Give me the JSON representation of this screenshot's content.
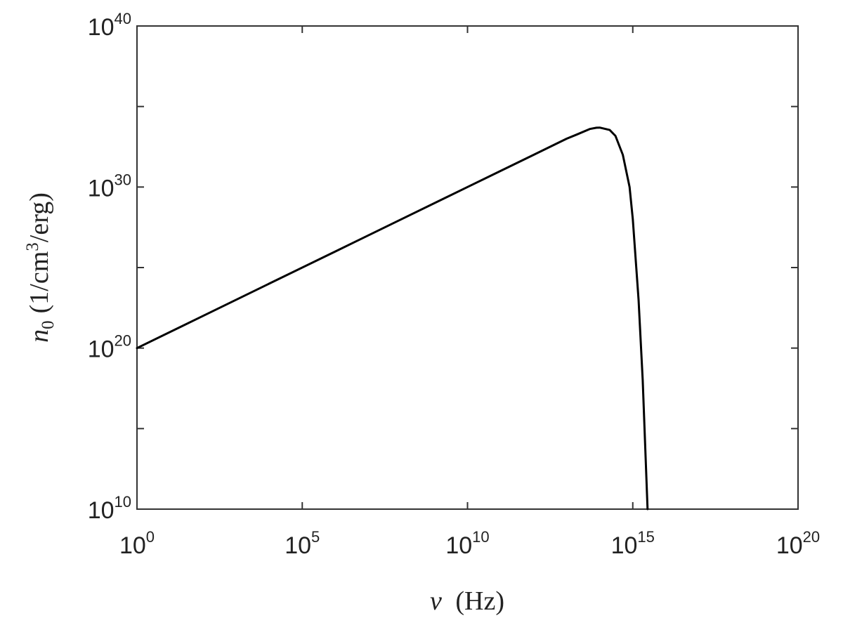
{
  "chart_data": {
    "type": "line",
    "title": "",
    "xscale": "log",
    "yscale": "log",
    "xlim": [
      1.0,
      1e+20
    ],
    "ylim": [
      10000000000.0,
      1e+40
    ],
    "grid": false,
    "legend": "none",
    "xlabel": {
      "symbol": "ν",
      "unit": "(Hz)"
    },
    "ylabel": {
      "symbol": "n",
      "subscript": "0",
      "unit_prefix": "(1/cm",
      "unit_superscript": "3",
      "unit_suffix": "/erg)"
    },
    "x_ticks": [
      {
        "base": "10",
        "exp": "0",
        "value": 1.0
      },
      {
        "base": "10",
        "exp": "5",
        "value": 100000.0
      },
      {
        "base": "10",
        "exp": "10",
        "value": 10000000000.0
      },
      {
        "base": "10",
        "exp": "15",
        "value": 1000000000000000.0
      },
      {
        "base": "10",
        "exp": "20",
        "value": 1e+20
      }
    ],
    "y_ticks": [
      {
        "base": "10",
        "exp": "10",
        "value": 10000000000.0
      },
      {
        "base": "10",
        "exp": "20",
        "value": 1e+20
      },
      {
        "base": "10",
        "exp": "30",
        "value": 1e+30
      },
      {
        "base": "10",
        "exp": "40",
        "value": 1e+40
      }
    ],
    "series": [
      {
        "color": "#000000",
        "x": [
          1.0,
          100.0,
          10000.0,
          1000000.0,
          100000000.0,
          10000000000.0,
          100000000000.0,
          1000000000000.0,
          10000000000000.0,
          20000000000000.0,
          50000000000000.0,
          80000000000000.0,
          100000000000000.0,
          200000000000000.0,
          300000000000000.0,
          500000000000000.0,
          800000000000000.0,
          1000000000000000.0,
          1500000000000000.0,
          2000000000000000.0,
          2800000000000000.0
        ],
        "y": [
          1e+20,
          1e+22,
          1e+24,
          1e+26,
          1e+28,
          1e+30,
          1e+31,
          1e+32,
          1e+33,
          1.8e+33,
          4e+33,
          4.8e+33,
          4.9e+33,
          3.5e+33,
          1.5e+33,
          1e+32,
          1e+30,
          1e+28,
          1e+23,
          1e+18,
          10000000000.0
        ]
      }
    ],
    "colors": {
      "axis": "#333333",
      "line": "#000000",
      "text": "#222222"
    }
  }
}
